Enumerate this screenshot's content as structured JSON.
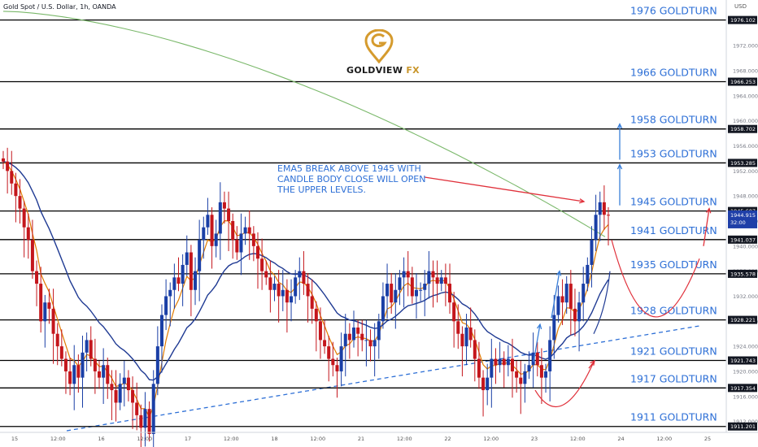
{
  "header": {
    "symbol_title": "Gold Spot / U.S. Dollar, 1h, OANDA",
    "currency": "USD"
  },
  "logo": {
    "brand": "GOLDVIEW",
    "brand_suffix": "FX"
  },
  "annotation": {
    "text": "EMA5 BREAK ABOVE 1945 WITH\nCANDLE BODY CLOSE WILL OPEN\nTHE UPPER LEVELS."
  },
  "colors": {
    "bull_candle": "#1a3fa6",
    "bear_candle": "#c4161c",
    "ema_short": "#e07b00",
    "ema_mid": "#1f3a93",
    "ema_long": "#7ab86a",
    "level_text": "#2d6fd6",
    "trendline": "#2d6fd6",
    "arrow_blue": "#3a7fd9",
    "arrow_red": "#e0303a",
    "price_tag": "#1f3fa8"
  },
  "chart_data": {
    "type": "candlestick",
    "symbol": "Gold Spot / U.S. Dollar",
    "timeframe": "1h",
    "source": "OANDA",
    "ylim": [
      1910,
      1978
    ],
    "y_ticks": [
      1912,
      1916,
      1920,
      1924,
      1928,
      1932,
      1936,
      1940,
      1944,
      1948,
      1952,
      1956,
      1960,
      1964,
      1968,
      1972
    ],
    "x_tick_labels": [
      "15",
      "12:00",
      "16",
      "12:00",
      "17",
      "12:00",
      "18",
      "12:00",
      "21",
      "12:00",
      "22",
      "12:00",
      "23",
      "12:00",
      "24",
      "12:00",
      "25"
    ],
    "levels": [
      {
        "price": 1976.102,
        "price_label": "1976.102",
        "text": "1976 GOLDTURN"
      },
      {
        "price": 1966.253,
        "price_label": "1966.253",
        "text": "1966 GOLDTURN"
      },
      {
        "price": 1958.702,
        "price_label": "1958.702",
        "text": "1958 GOLDTURN"
      },
      {
        "price": 1953.285,
        "price_label": "1953.285",
        "text": "1953 GOLDTURN"
      },
      {
        "price": 1945.607,
        "price_label": "1945.607",
        "text": "1945 GOLDTURN"
      },
      {
        "price": 1941.037,
        "price_label": "1941.037",
        "text": "1941 GOLDTURN"
      },
      {
        "price": 1935.578,
        "price_label": "1935.578",
        "text": "1935 GOLDTURN"
      },
      {
        "price": 1928.221,
        "price_label": "1928.221",
        "text": "1928 GOLDTURN"
      },
      {
        "price": 1921.743,
        "price_label": "1921.743",
        "text": "1921 GOLDTURN"
      },
      {
        "price": 1917.354,
        "price_label": "1917.354",
        "text": "1917 GOLDTURN"
      },
      {
        "price": 1911.201,
        "price_label": "1911.201",
        "text": "1911 GOLDTURN"
      }
    ],
    "current_price": {
      "price": 1944.915,
      "label": "1944.915",
      "countdown": "32:00"
    },
    "closes": [
      1953.5,
      1952,
      1950,
      1948,
      1946,
      1943,
      1941,
      1936,
      1934,
      1928,
      1931,
      1930,
      1926,
      1924,
      1922,
      1920,
      1918,
      1921,
      1919,
      1923,
      1925,
      1922,
      1920,
      1919,
      1921,
      1918,
      1917,
      1915,
      1918,
      1919,
      1917,
      1915,
      1913,
      1911,
      1914,
      1910,
      1918,
      1924,
      1929,
      1932,
      1933,
      1935,
      1934,
      1937,
      1939,
      1933,
      1936,
      1941,
      1943,
      1945,
      1940,
      1942,
      1947,
      1946,
      1944,
      1941,
      1939,
      1942,
      1943,
      1942,
      1940,
      1938,
      1936,
      1935,
      1933,
      1934,
      1932,
      1933,
      1931,
      1932,
      1935,
      1936,
      1934,
      1932,
      1930,
      1928,
      1925,
      1924,
      1922,
      1921,
      1920,
      1924,
      1926,
      1925,
      1927,
      1926,
      1925,
      1925,
      1924,
      1925,
      1928,
      1932,
      1934,
      1931,
      1933,
      1935,
      1936,
      1935,
      1932,
      1933,
      1933,
      1934,
      1936,
      1935,
      1934,
      1935,
      1934,
      1931,
      1928,
      1926,
      1924,
      1927,
      1925,
      1922,
      1919,
      1917,
      1919,
      1922,
      1921,
      1922,
      1921,
      1922,
      1920,
      1919,
      1918,
      1920,
      1921,
      1923,
      1921,
      1919,
      1920,
      1925,
      1929,
      1932,
      1931,
      1934,
      1930,
      1928,
      1931,
      1934,
      1937,
      1941,
      1945,
      1947,
      1945,
      1944.9
    ]
  }
}
